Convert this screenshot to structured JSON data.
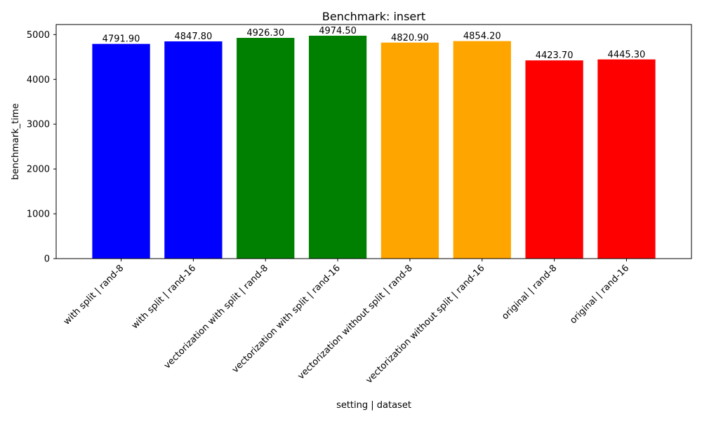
{
  "chart_data": {
    "type": "bar",
    "title": "Benchmark: insert",
    "xlabel": "setting | dataset",
    "ylabel": "benchmark_time",
    "ylim": [
      0,
      5224
    ],
    "yticks": [
      0,
      1000,
      2000,
      3000,
      4000,
      5000
    ],
    "grid": false,
    "legend": "none",
    "categories": [
      "with split | rand-8",
      "with split | rand-16",
      "vectorization with split | rand-8",
      "vectorization with split | rand-16",
      "vectorization without split | rand-8",
      "vectorization without split | rand-16",
      "original | rand-8",
      "original | rand-16"
    ],
    "values": [
      4791.9,
      4847.8,
      4926.3,
      4974.5,
      4820.9,
      4854.2,
      4423.7,
      4445.3
    ],
    "value_labels": [
      "4791.90",
      "4847.80",
      "4926.30",
      "4974.50",
      "4820.90",
      "4854.20",
      "4423.70",
      "4445.30"
    ],
    "colors": [
      "#0000ff",
      "#0000ff",
      "#008000",
      "#008000",
      "#ffa500",
      "#ffa500",
      "#ff0000",
      "#ff0000"
    ]
  }
}
